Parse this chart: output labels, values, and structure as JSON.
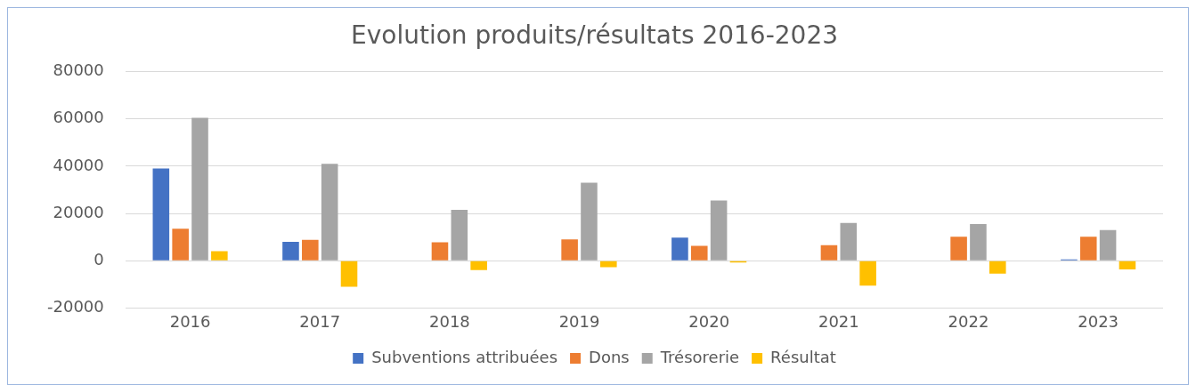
{
  "chart_data": {
    "type": "bar",
    "title": "Evolution produits/résultats 2016-2023",
    "categories": [
      "2016",
      "2017",
      "2018",
      "2019",
      "2020",
      "2021",
      "2022",
      "2023"
    ],
    "series": [
      {
        "name": "Subventions attribuées",
        "color": "#4472c4",
        "values": [
          39000,
          8000,
          0,
          0,
          9800,
          0,
          0,
          600
        ]
      },
      {
        "name": "Dons",
        "color": "#ed7d31",
        "values": [
          13500,
          8800,
          7800,
          9000,
          6300,
          6600,
          10200,
          10200
        ]
      },
      {
        "name": "Trésorerie",
        "color": "#a5a5a5",
        "values": [
          60500,
          41000,
          21500,
          33000,
          25500,
          16000,
          15500,
          13000
        ]
      },
      {
        "name": "Résultat",
        "color": "#ffc000",
        "values": [
          4000,
          -11000,
          -4000,
          -2700,
          -800,
          -10500,
          -5500,
          -3700
        ]
      }
    ],
    "ylim": [
      -20000,
      80000
    ],
    "yticks": [
      -20000,
      0,
      20000,
      40000,
      60000,
      80000
    ],
    "grid": "y",
    "legend": "bottom"
  }
}
